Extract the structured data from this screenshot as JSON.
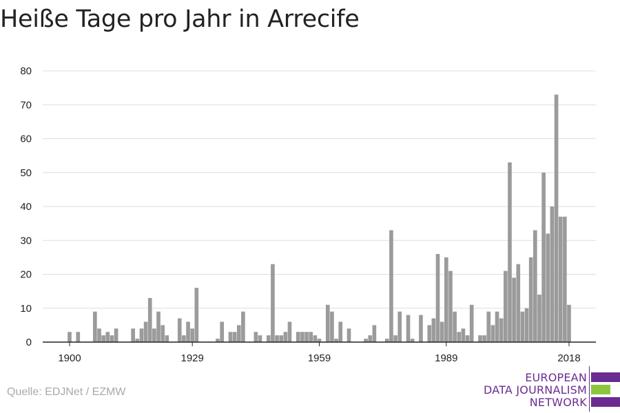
{
  "header": {
    "title": "Heiße Tage pro Jahr in Arrecife"
  },
  "footer": {
    "source": "Quelle: EDJNet / EZMW"
  },
  "logo": {
    "line1": "EUROPEAN",
    "line2": "DATA JOURNALISM",
    "line3": "NETWORK",
    "colors": [
      "#6a2c91",
      "#8cc63f",
      "#6a2c91"
    ]
  },
  "colors": {
    "bar": "#9b9b9b",
    "grid": "#dddddd",
    "axis": "#222222",
    "text": "#222222"
  },
  "chart_data": {
    "type": "bar",
    "title": "Heiße Tage pro Jahr in Arrecife",
    "xlabel": "",
    "ylabel": "",
    "ylim": [
      0,
      80
    ],
    "yticks": [
      0,
      10,
      20,
      30,
      40,
      50,
      60,
      70,
      80
    ],
    "xticks": [
      1900,
      1929,
      1959,
      1989,
      2018
    ],
    "grid": true,
    "x": [
      1900,
      1901,
      1902,
      1903,
      1904,
      1905,
      1906,
      1907,
      1908,
      1909,
      1910,
      1911,
      1912,
      1913,
      1914,
      1915,
      1916,
      1917,
      1918,
      1919,
      1920,
      1921,
      1922,
      1923,
      1924,
      1925,
      1926,
      1927,
      1928,
      1929,
      1930,
      1931,
      1932,
      1933,
      1934,
      1935,
      1936,
      1937,
      1938,
      1939,
      1940,
      1941,
      1942,
      1943,
      1944,
      1945,
      1946,
      1947,
      1948,
      1949,
      1950,
      1951,
      1952,
      1953,
      1954,
      1955,
      1956,
      1957,
      1958,
      1959,
      1960,
      1961,
      1962,
      1963,
      1964,
      1965,
      1966,
      1967,
      1968,
      1969,
      1970,
      1971,
      1972,
      1973,
      1974,
      1975,
      1976,
      1977,
      1978,
      1979,
      1980,
      1981,
      1982,
      1983,
      1984,
      1985,
      1986,
      1987,
      1988,
      1989,
      1990,
      1991,
      1992,
      1993,
      1994,
      1995,
      1996,
      1997,
      1998,
      1999,
      2000,
      2001,
      2002,
      2003,
      2004,
      2005,
      2006,
      2007,
      2008,
      2009,
      2010,
      2011,
      2012,
      2013,
      2014,
      2015,
      2016,
      2017,
      2018
    ],
    "series": [
      {
        "values": [
          3,
          0,
          3,
          0,
          0,
          0,
          9,
          4,
          2,
          3,
          2,
          4,
          0,
          0,
          0,
          4,
          1,
          4,
          6,
          13,
          4,
          9,
          5,
          2,
          0,
          0,
          7,
          2,
          6,
          4,
          16,
          0,
          0,
          0,
          0,
          1,
          6,
          0,
          3,
          3,
          5,
          9,
          0,
          0,
          3,
          2,
          0,
          2,
          23,
          2,
          2,
          3,
          6,
          0,
          3,
          3,
          3,
          3,
          2,
          1,
          0,
          11,
          9,
          1,
          6,
          0,
          4,
          0,
          0,
          0,
          1,
          2,
          5,
          0,
          0,
          1,
          33,
          2,
          9,
          0,
          8,
          1,
          0,
          8,
          0,
          5,
          7,
          26,
          6,
          25,
          21,
          9,
          3,
          4,
          2,
          11,
          0,
          2,
          2,
          9,
          5,
          9,
          7,
          21,
          53,
          19,
          23,
          9,
          10,
          25,
          33,
          14,
          50,
          32,
          40,
          73,
          37,
          37,
          11
        ]
      }
    ]
  }
}
